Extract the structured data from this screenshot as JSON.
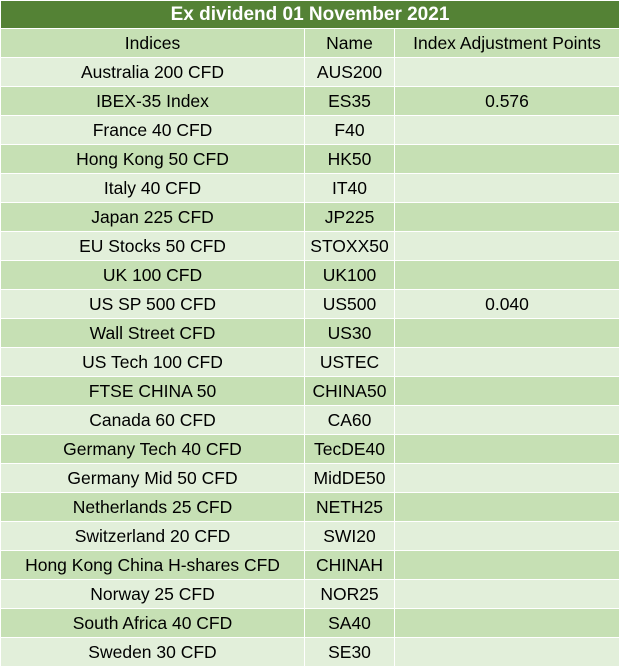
{
  "title": "Ex dividend 01 November 2021",
  "headers": {
    "indices": "Indices",
    "name": "Name",
    "points": "Index Adjustment Points"
  },
  "rows": [
    {
      "index": "Australia 200 CFD",
      "name": "AUS200",
      "points": ""
    },
    {
      "index": "IBEX-35 Index",
      "name": "ES35",
      "points": "0.576"
    },
    {
      "index": "France 40 CFD",
      "name": "F40",
      "points": ""
    },
    {
      "index": "Hong Kong 50 CFD",
      "name": "HK50",
      "points": ""
    },
    {
      "index": "Italy 40 CFD",
      "name": "IT40",
      "points": ""
    },
    {
      "index": "Japan 225 CFD",
      "name": "JP225",
      "points": ""
    },
    {
      "index": "EU Stocks 50 CFD",
      "name": "STOXX50",
      "points": ""
    },
    {
      "index": "UK 100 CFD",
      "name": "UK100",
      "points": ""
    },
    {
      "index": "US SP 500 CFD",
      "name": "US500",
      "points": "0.040"
    },
    {
      "index": "Wall Street CFD",
      "name": "US30",
      "points": ""
    },
    {
      "index": "US Tech 100 CFD",
      "name": "USTEC",
      "points": ""
    },
    {
      "index": "FTSE CHINA 50",
      "name": "CHINA50",
      "points": ""
    },
    {
      "index": "Canada 60 CFD",
      "name": "CA60",
      "points": ""
    },
    {
      "index": "Germany Tech 40 CFD",
      "name": "TecDE40",
      "points": ""
    },
    {
      "index": "Germany Mid 50 CFD",
      "name": "MidDE50",
      "points": ""
    },
    {
      "index": "Netherlands 25 CFD",
      "name": "NETH25",
      "points": ""
    },
    {
      "index": "Switzerland 20 CFD",
      "name": "SWI20",
      "points": ""
    },
    {
      "index": "Hong Kong China H-shares CFD",
      "name": "CHINAH",
      "points": ""
    },
    {
      "index": "Norway 25 CFD",
      "name": "NOR25",
      "points": ""
    },
    {
      "index": "South Africa 40 CFD",
      "name": "SA40",
      "points": ""
    },
    {
      "index": "Sweden 30 CFD",
      "name": "SE30",
      "points": ""
    }
  ],
  "colors": {
    "title_bg": "#548235",
    "title_text": "#ffffff",
    "row_dark": "#c6e0b4",
    "row_light": "#e2efda"
  }
}
